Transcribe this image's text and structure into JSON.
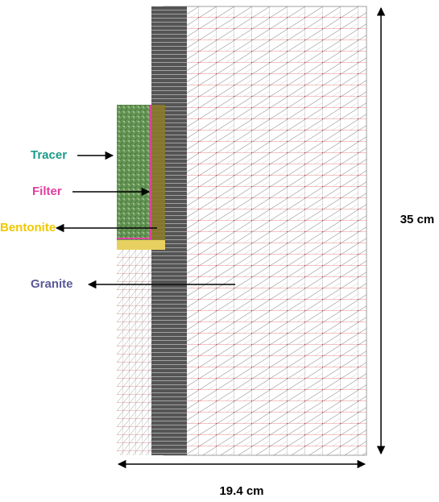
{
  "labels": {
    "tracer": "Tracer",
    "filter": "Filter",
    "bentonite": "Bentonite",
    "granite": "Granite"
  },
  "dimensions": {
    "height": "35 cm",
    "width": "19.4 cm"
  }
}
